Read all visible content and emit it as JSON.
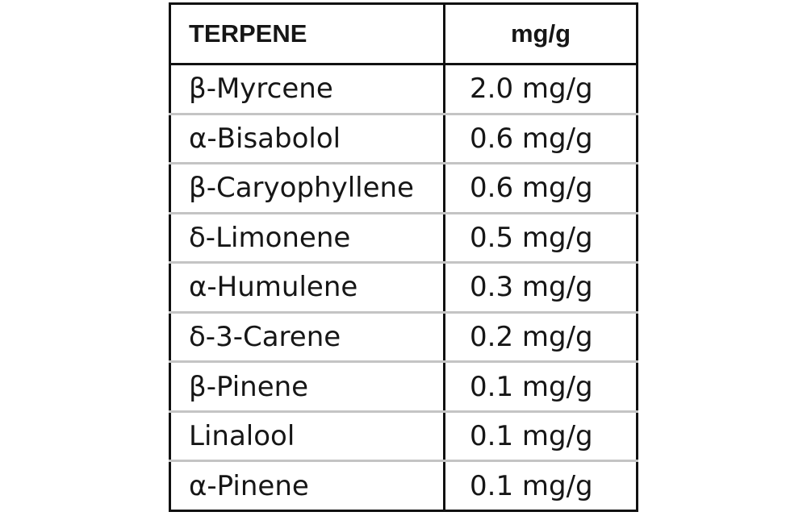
{
  "table": {
    "headers": [
      "TERPENE",
      "mg/g"
    ],
    "rows": [
      {
        "terpene": "β-Myrcene",
        "amount": "2.0 mg/g"
      },
      {
        "terpene": "α-Bisabolol",
        "amount": "0.6 mg/g"
      },
      {
        "terpene": "β-Caryophyllene",
        "amount": "0.6 mg/g"
      },
      {
        "terpene": "δ-Limonene",
        "amount": "0.5 mg/g"
      },
      {
        "terpene": "α-Humulene",
        "amount": "0.3 mg/g"
      },
      {
        "terpene": "δ-3-Carene",
        "amount": "0.2 mg/g"
      },
      {
        "terpene": "β-Pinene",
        "amount": "0.1 mg/g"
      },
      {
        "terpene": "Linalool",
        "amount": "0.1 mg/g"
      },
      {
        "terpene": "α-Pinene",
        "amount": "0.1 mg/g"
      }
    ]
  }
}
